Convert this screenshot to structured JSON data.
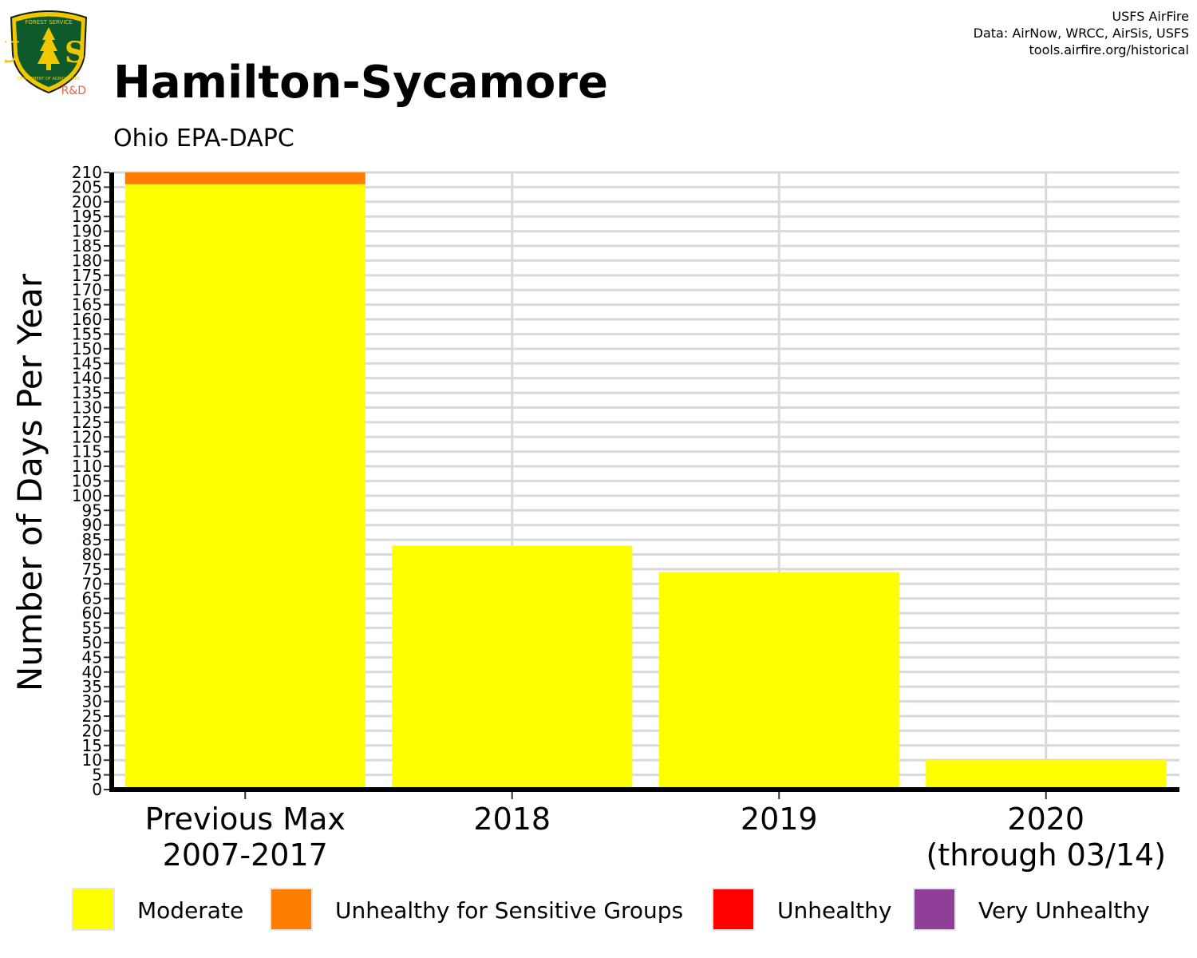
{
  "logo": {
    "arc_top": "FOREST SERVICE",
    "arc_bottom": "DEPARTMENT OF AGRICULTURE",
    "letters": "U S",
    "rnd": "R&D"
  },
  "credits": {
    "line1": "USFS AirFire",
    "line2": "Data: AirNow, WRCC, AirSis, USFS",
    "line3": "tools.airfire.org/historical"
  },
  "chart_data": {
    "type": "bar",
    "stacked": true,
    "title": "Hamilton-Sycamore",
    "subtitle": "Ohio EPA-DAPC",
    "ylabel": "Number of Days Per Year",
    "xlabel": "",
    "ylim": [
      0,
      210
    ],
    "ytick_step": 5,
    "grid": true,
    "legend_position": "bottom",
    "categories": [
      [
        "Previous Max",
        "2007-2017"
      ],
      [
        "2018"
      ],
      [
        "2019"
      ],
      [
        "2020",
        "(through 03/14)"
      ]
    ],
    "series": [
      {
        "name": "Moderate",
        "color": "#ffff00",
        "values": [
          206,
          83,
          74,
          10
        ]
      },
      {
        "name": "Unhealthy for Sensitive Groups",
        "color": "#ff7e00",
        "values": [
          4,
          0,
          0,
          0
        ]
      },
      {
        "name": "Unhealthy",
        "color": "#ff0000",
        "values": [
          0,
          0,
          0,
          0
        ]
      },
      {
        "name": "Very Unhealthy",
        "color": "#8f3f97",
        "values": [
          0,
          0,
          0,
          0
        ]
      }
    ]
  }
}
